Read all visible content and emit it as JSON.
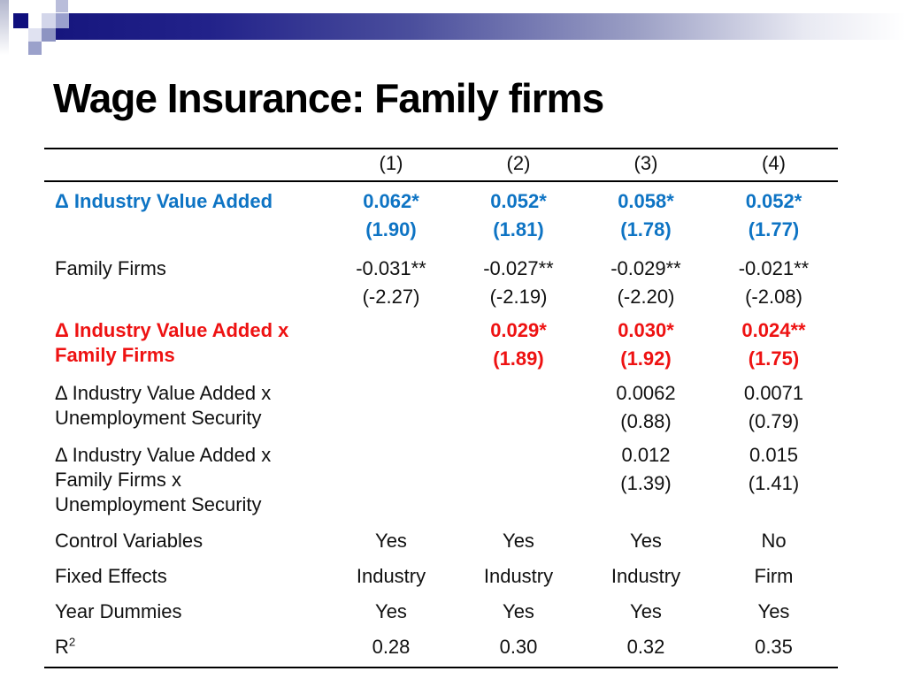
{
  "slide": {
    "title": "Wage Insurance: Family firms"
  },
  "colors": {
    "accent_blue": "#0e74c4",
    "accent_red": "#ee1212",
    "bar_navy": "#16167e",
    "square_navy": "#0f0f7d",
    "square_lavender": "#9aa0cd"
  },
  "decoration": {
    "motif": "pixel-squares-and-gradient-bar"
  },
  "table": {
    "col_headers": [
      "(1)",
      "(2)",
      "(3)",
      "(4)"
    ],
    "rows": [
      {
        "label_lines": [
          "Δ Industry Value Added"
        ],
        "color": "blue",
        "cells": [
          {
            "est": "0.062*",
            "t": "(1.90)"
          },
          {
            "est": "0.052*",
            "t": "(1.81)"
          },
          {
            "est": "0.058*",
            "t": "(1.78)"
          },
          {
            "est": "0.052*",
            "t": "(1.77)"
          }
        ]
      },
      {
        "label_lines": [
          "Family Firms"
        ],
        "color": "black",
        "cells": [
          {
            "est": "-0.031**",
            "t": "(-2.27)"
          },
          {
            "est": "-0.027**",
            "t": "(-2.19)"
          },
          {
            "est": "-0.029**",
            "t": "(-2.20)"
          },
          {
            "est": "-0.021**",
            "t": "(-2.08)"
          }
        ]
      },
      {
        "label_lines": [
          "Δ Industry Value Added x",
          "Family Firms"
        ],
        "color": "red",
        "cells": [
          {
            "est": "",
            "t": ""
          },
          {
            "est": "0.029*",
            "t": "(1.89)"
          },
          {
            "est": "0.030*",
            "t": "(1.92)"
          },
          {
            "est": "0.024**",
            "t": "(1.75)"
          }
        ]
      },
      {
        "label_lines": [
          "Δ Industry Value Added x",
          "Unemployment Security"
        ],
        "color": "black",
        "cells": [
          {
            "est": "",
            "t": ""
          },
          {
            "est": "",
            "t": ""
          },
          {
            "est": "0.0062",
            "t": "(0.88)"
          },
          {
            "est": "0.0071",
            "t": "(0.79)"
          }
        ]
      },
      {
        "label_lines": [
          "Δ Industry Value Added x",
          "Family Firms x",
          "Unemployment Security"
        ],
        "color": "black",
        "cells": [
          {
            "est": "",
            "t": ""
          },
          {
            "est": "",
            "t": ""
          },
          {
            "est": "0.012",
            "t": "(1.39)"
          },
          {
            "est": "0.015",
            "t": "(1.41)"
          }
        ]
      }
    ],
    "meta_rows": [
      {
        "label": "Control Variables",
        "values": [
          "Yes",
          "Yes",
          "Yes",
          "No"
        ]
      },
      {
        "label": "Fixed Effects",
        "values": [
          "Industry",
          "Industry",
          "Industry",
          "Firm"
        ]
      },
      {
        "label": "Year Dummies",
        "values": [
          "Yes",
          "Yes",
          "Yes",
          "Yes"
        ]
      },
      {
        "label": "R",
        "label_sup": "2",
        "values": [
          "0.28",
          "0.30",
          "0.32",
          "0.35"
        ]
      }
    ]
  }
}
